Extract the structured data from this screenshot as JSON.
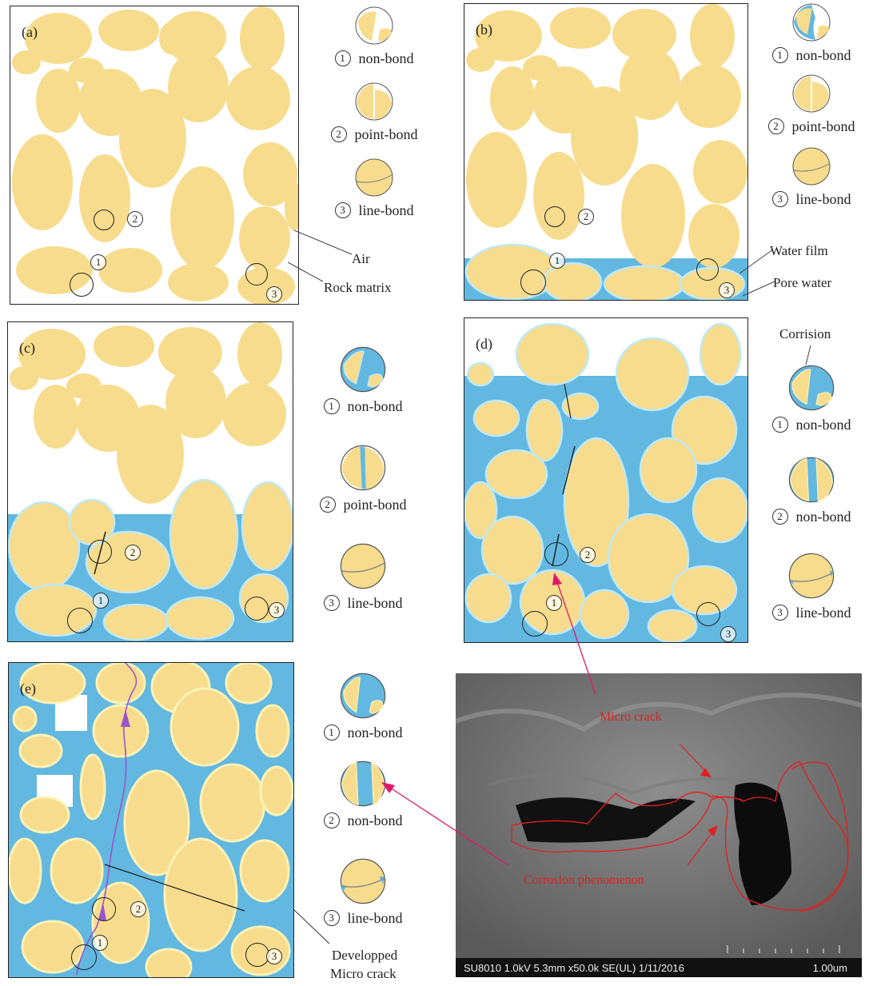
{
  "colors": {
    "grain": "#f7dc8d",
    "grain_light": "#fbf2b8",
    "water": "#62b8e0",
    "water_film": "#bfe9f6",
    "outline": "#222222",
    "arrow_red": "#e0186a",
    "crack_purple": "#9a55c9",
    "sem_outline": "#e02020"
  },
  "panels": {
    "a": {
      "label": "(a)"
    },
    "b": {
      "label": "(b)"
    },
    "c": {
      "label": "(c)"
    },
    "d": {
      "label": "(d)"
    },
    "e": {
      "label": "(e)"
    }
  },
  "markers": {
    "one": "①",
    "two": "②",
    "three": "③"
  },
  "markers_plain": {
    "one": "1",
    "two": "2",
    "three": "3"
  },
  "legend": {
    "a": [
      {
        "num": "①",
        "label": "non-bond"
      },
      {
        "num": "②",
        "label": "point-bond"
      },
      {
        "num": "③",
        "label": "line-bond"
      }
    ],
    "b": [
      {
        "num": "①",
        "label": "non-bond"
      },
      {
        "num": "②",
        "label": "point-bond"
      },
      {
        "num": "③",
        "label": "line-bond"
      }
    ],
    "c": [
      {
        "num": "①",
        "label": "non-bond"
      },
      {
        "num": "②",
        "label": "point-bond"
      },
      {
        "num": "③",
        "label": "line-bond"
      }
    ],
    "d": [
      {
        "num": "①",
        "label": "non-bond"
      },
      {
        "num": "②",
        "label": "non-bond"
      },
      {
        "num": "③",
        "label": "line-bond"
      }
    ],
    "e": [
      {
        "num": "①",
        "label": "non-bond"
      },
      {
        "num": "②",
        "label": "non-bond"
      },
      {
        "num": "③",
        "label": "line-bond"
      }
    ]
  },
  "annotations": {
    "air": "Air",
    "rock_matrix": "Rock matrix",
    "water_film": "Water film",
    "pore_water": "Pore water",
    "corrision": "Corrision",
    "developped": "Developped",
    "micro_crack_label": "Micro crack"
  },
  "sem": {
    "micro_crack": "Micro crack",
    "corrosion": "Corrosion phenomenon",
    "info": "SU8010 1.0kV 5.3mm x50.0k SE(UL) 1/11/2016",
    "scale": "1.00um"
  }
}
